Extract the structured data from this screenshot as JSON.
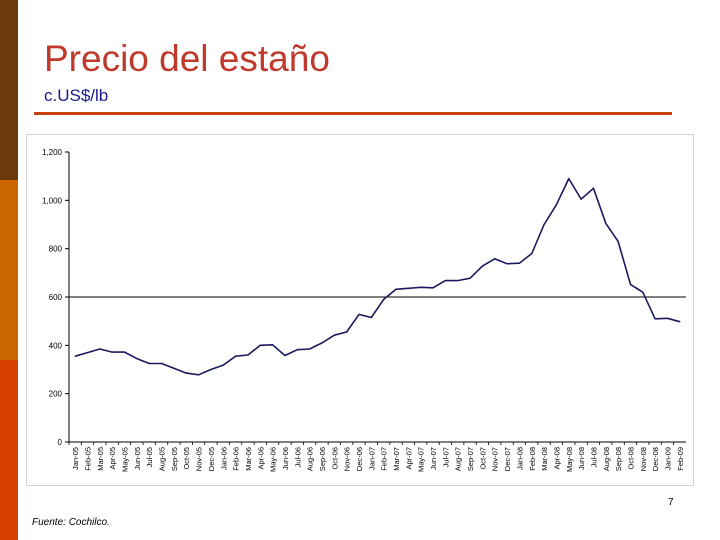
{
  "slide": {
    "title": "Precio del estaño",
    "subtitle": "c.US$/lb",
    "page_number": "7",
    "source": "Fuente: Cochilco."
  },
  "colors": {
    "title": "#c0392b",
    "subtitle": "#1a1a8c",
    "rule": "#c8410f",
    "series_line": "#1a1a5e",
    "reference_line": "#000000",
    "sidebar": [
      "#6b3a0a",
      "#cc6600",
      "#d83e00"
    ]
  },
  "chart_data": {
    "type": "line",
    "title": "",
    "xlabel": "",
    "ylabel": "",
    "ylim": [
      0,
      1200
    ],
    "yticks": [
      0,
      200,
      400,
      600,
      800,
      1000,
      1200
    ],
    "ytick_labels": [
      "0",
      "200",
      "400",
      "600",
      "800",
      "1,000",
      "1,200"
    ],
    "grid": false,
    "reference_line": 600,
    "categories": [
      "Jan-05",
      "Feb-05",
      "Mar-05",
      "Apr-05",
      "May-05",
      "Jun-05",
      "Jul-05",
      "Aug-05",
      "Sep-05",
      "Oct-05",
      "Nov-05",
      "Dec-05",
      "Jan-06",
      "Feb-06",
      "Mar-06",
      "Apr-06",
      "May-06",
      "Jun-06",
      "Jul-06",
      "Aug-06",
      "Sep-06",
      "Oct-06",
      "Nov-06",
      "Dec-06",
      "Jan-07",
      "Feb-07",
      "Mar-07",
      "Apr-07",
      "May-07",
      "Jun-07",
      "Jul-07",
      "Aug-07",
      "Sep-07",
      "Oct-07",
      "Nov-07",
      "Dec-07",
      "Jan-08",
      "Feb-08",
      "Mar-08",
      "Apr-08",
      "May-08",
      "Jun-08",
      "Jul-08",
      "Aug-08",
      "Sep-08",
      "Oct-08",
      "Nov-08",
      "Dec-08",
      "Jan-09",
      "Feb-09"
    ],
    "series": [
      {
        "values": [
          355,
          370,
          385,
          372,
          372,
          345,
          325,
          325,
          305,
          285,
          278,
          300,
          318,
          355,
          360,
          400,
          402,
          358,
          382,
          385,
          410,
          442,
          455,
          528,
          515,
          590,
          632,
          636,
          640,
          638,
          668,
          668,
          678,
          728,
          758,
          738,
          740,
          780,
          900,
          982,
          1090,
          1005,
          1050,
          905,
          830,
          652,
          620,
          510,
          512,
          498
        ]
      }
    ]
  }
}
